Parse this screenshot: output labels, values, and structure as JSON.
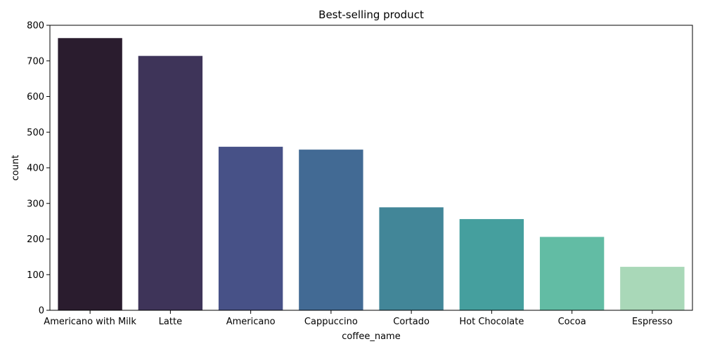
{
  "chart_data": {
    "type": "bar",
    "title": "Best-selling product",
    "xlabel": "coffee_name",
    "ylabel": "count",
    "ylim": [
      0,
      800
    ],
    "yticks": [
      0,
      100,
      200,
      300,
      400,
      500,
      600,
      700,
      800
    ],
    "grid": false,
    "categories": [
      "Americano with Milk",
      "Latte",
      "Americano",
      "Cappuccino",
      "Cortado",
      "Hot Chocolate",
      "Cocoa",
      "Espresso"
    ],
    "values": [
      764,
      714,
      459,
      451,
      289,
      256,
      206,
      122
    ],
    "colors": [
      "#2a1c2e",
      "#3e3459",
      "#475187",
      "#426a94",
      "#428698",
      "#459f9e",
      "#62bca4",
      "#a9d8b8"
    ]
  }
}
